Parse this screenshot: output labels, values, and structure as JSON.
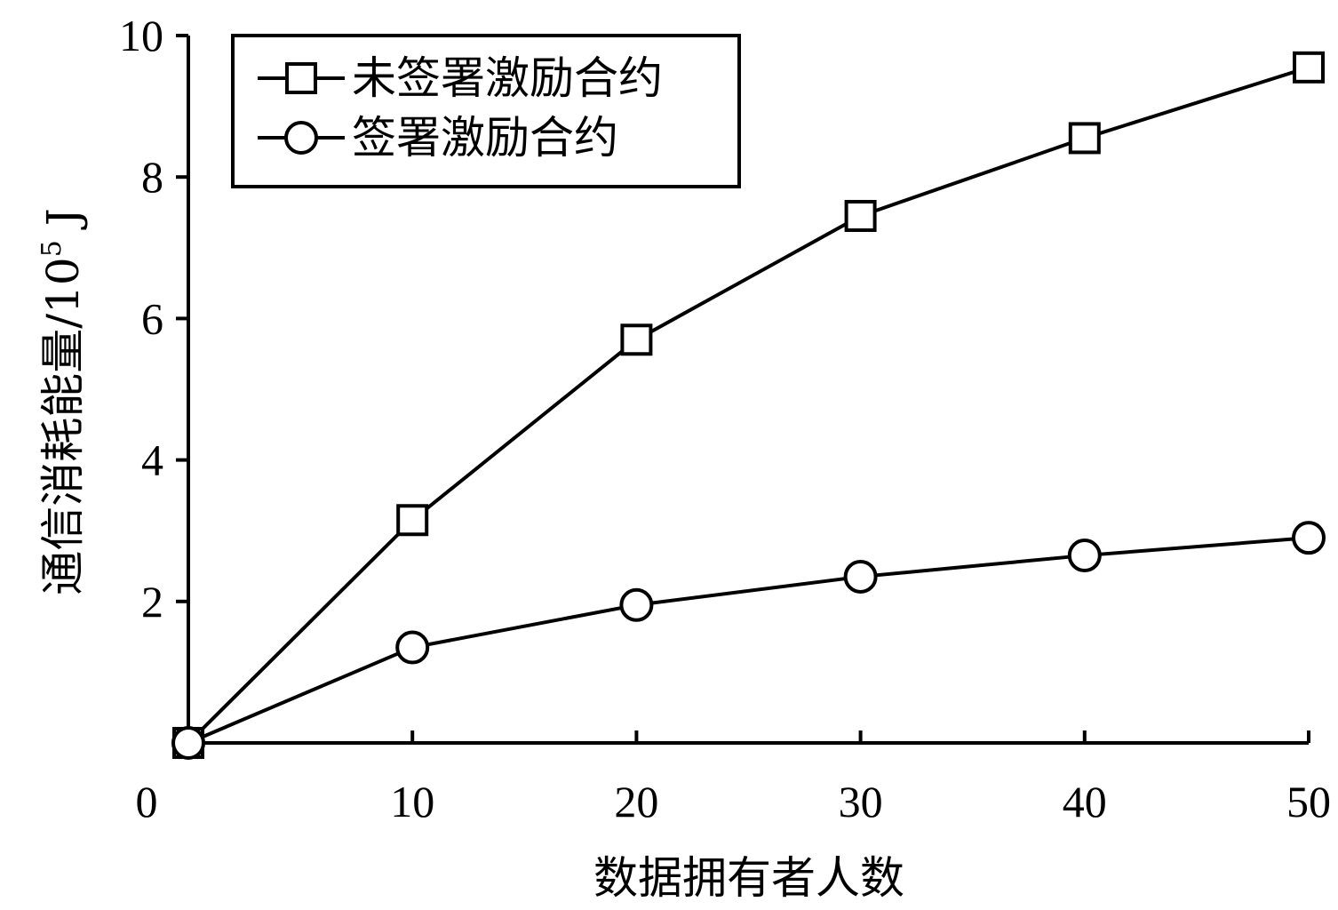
{
  "chart_data": {
    "type": "line",
    "title": "",
    "xlabel": "数据拥有者人数",
    "ylabel": "通信消耗能量/10",
    "ylabel_superscript": "5",
    "ylabel_unit": " J",
    "xlim": [
      0,
      50
    ],
    "ylim": [
      0,
      10
    ],
    "xticks": [
      0,
      10,
      20,
      30,
      40,
      50
    ],
    "yticks": [
      2,
      4,
      6,
      8,
      10
    ],
    "grid": false,
    "legend_position": "top-left",
    "series": [
      {
        "name": "未签署激励合约",
        "marker": "square",
        "color": "#000000",
        "x": [
          0,
          10,
          20,
          30,
          40,
          50
        ],
        "y": [
          0.0,
          3.15,
          5.7,
          7.45,
          8.55,
          9.55
        ]
      },
      {
        "name": "签署激励合约",
        "marker": "circle",
        "color": "#000000",
        "x": [
          0,
          10,
          20,
          30,
          40,
          50
        ],
        "y": [
          0.0,
          1.35,
          1.95,
          2.35,
          2.65,
          2.9
        ]
      }
    ]
  }
}
